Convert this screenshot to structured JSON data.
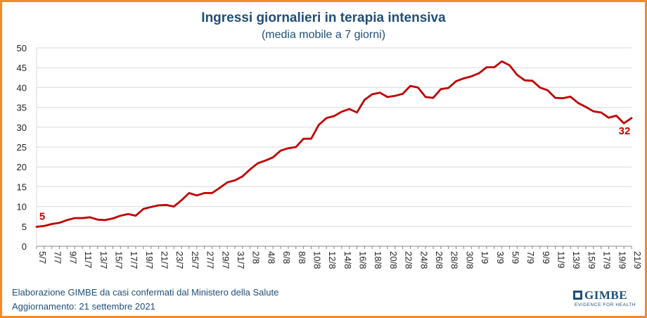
{
  "chart_data": {
    "type": "line",
    "title": "Ingressi giornalieri in terapia intensiva",
    "subtitle": "(media mobile a 7 giorni)",
    "ylim": [
      0,
      50
    ],
    "yticks": [
      0,
      5,
      10,
      15,
      20,
      25,
      30,
      35,
      40,
      45,
      50
    ],
    "grid": true,
    "line_color": "#C00000",
    "x": [
      "5/7",
      "6/7",
      "7/7",
      "8/7",
      "9/7",
      "10/7",
      "11/7",
      "12/7",
      "13/7",
      "14/7",
      "15/7",
      "16/7",
      "17/7",
      "18/7",
      "19/7",
      "20/7",
      "21/7",
      "22/7",
      "23/7",
      "24/7",
      "25/7",
      "26/7",
      "27/7",
      "28/7",
      "29/7",
      "30/7",
      "31/7",
      "1/8",
      "2/8",
      "3/8",
      "4/8",
      "5/8",
      "6/8",
      "7/8",
      "8/8",
      "9/8",
      "10/8",
      "11/8",
      "12/8",
      "13/8",
      "14/8",
      "15/8",
      "16/8",
      "17/8",
      "18/8",
      "19/8",
      "20/8",
      "21/8",
      "22/8",
      "23/8",
      "24/8",
      "25/8",
      "26/8",
      "27/8",
      "28/8",
      "29/8",
      "30/8",
      "31/8",
      "1/9",
      "2/9",
      "3/9",
      "4/9",
      "5/9",
      "6/9",
      "7/9",
      "8/9",
      "9/9",
      "10/9",
      "11/9",
      "12/9",
      "13/9",
      "14/9",
      "15/9",
      "16/9",
      "17/9",
      "18/9",
      "19/9",
      "20/9",
      "21/9"
    ],
    "xtick_labels": [
      "5/7",
      "7/7",
      "9/7",
      "11/7",
      "13/7",
      "15/7",
      "17/7",
      "19/7",
      "21/7",
      "23/7",
      "25/7",
      "27/7",
      "29/7",
      "31/7",
      "2/8",
      "4/8",
      "6/8",
      "8/8",
      "10/8",
      "12/8",
      "14/8",
      "16/8",
      "18/8",
      "20/8",
      "22/8",
      "24/8",
      "26/8",
      "28/8",
      "30/8",
      "1/9",
      "3/9",
      "5/9",
      "7/9",
      "9/9",
      "11/9",
      "13/9",
      "15/9",
      "17/9",
      "19/9",
      "21/9"
    ],
    "values": [
      4.9,
      5.1,
      5.6,
      5.9,
      6.6,
      7.1,
      7.1,
      7.3,
      6.7,
      6.6,
      7.0,
      7.7,
      8.1,
      7.7,
      9.4,
      9.9,
      10.3,
      10.4,
      10.0,
      11.6,
      13.4,
      12.8,
      13.4,
      13.4,
      14.7,
      16.1,
      16.6,
      17.6,
      19.4,
      20.9,
      21.6,
      22.4,
      24.1,
      24.7,
      25.0,
      27.1,
      27.1,
      30.6,
      32.3,
      32.8,
      33.9,
      34.6,
      33.7,
      36.9,
      38.3,
      38.7,
      37.6,
      37.9,
      38.4,
      40.4,
      40.0,
      37.6,
      37.4,
      39.6,
      39.9,
      41.6,
      42.3,
      42.8,
      43.6,
      45.1,
      45.1,
      46.6,
      45.6,
      43.2,
      41.8,
      41.7,
      40.0,
      39.3,
      37.4,
      37.3,
      37.7,
      36.1,
      35.1,
      34.0,
      33.7,
      32.4,
      32.9,
      31.0,
      32.3
    ],
    "annotations": [
      {
        "label": "5",
        "at_index": 0
      },
      {
        "label": "32",
        "at_index": 78
      }
    ]
  },
  "footer": {
    "source": "Elaborazione GIMBE da casi confermati dal Ministero della Salute",
    "updated": "Aggiornamento: 21 settembre 2021"
  },
  "logo": {
    "name": "GIMBE",
    "tagline": "EVIDENCE FOR HEALTH"
  }
}
